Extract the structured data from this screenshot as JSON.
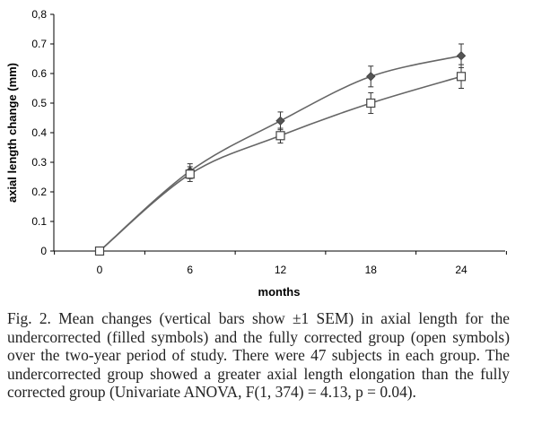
{
  "chart_data": {
    "type": "line",
    "xlabel": "months",
    "ylabel": "axial length change (mm)",
    "x": [
      0,
      6,
      12,
      18,
      24
    ],
    "x_tick_labels": [
      "0",
      "6",
      "12",
      "18",
      "24"
    ],
    "y_tick_labels": [
      "0",
      "0.1",
      "0.2",
      "0.3",
      "0.4",
      "0.5",
      "0.6",
      "0.7",
      "0,8"
    ],
    "ylim": [
      0,
      0.8
    ],
    "grid": false,
    "series": [
      {
        "marker": "filled-diamond",
        "values": [
          0,
          0.27,
          0.44,
          0.59,
          0.66
        ],
        "sem": [
          0,
          0.025,
          0.03,
          0.035,
          0.04
        ]
      },
      {
        "marker": "open-square",
        "values": [
          0,
          0.26,
          0.39,
          0.5,
          0.59
        ],
        "sem": [
          0,
          0.025,
          0.025,
          0.035,
          0.04
        ]
      }
    ]
  },
  "caption": "Fig. 2. Mean changes (vertical bars show ±1 SEM) in axial length for the undercorrected (filled symbols) and the fully corrected group (open symbols) over the two-year period of study. There were 47 subjects in each group. The undercorrected group showed a greater axial length elongation than the fully corrected group (Univariate ANOVA, F(1, 374) = 4.13, p = 0.04)."
}
